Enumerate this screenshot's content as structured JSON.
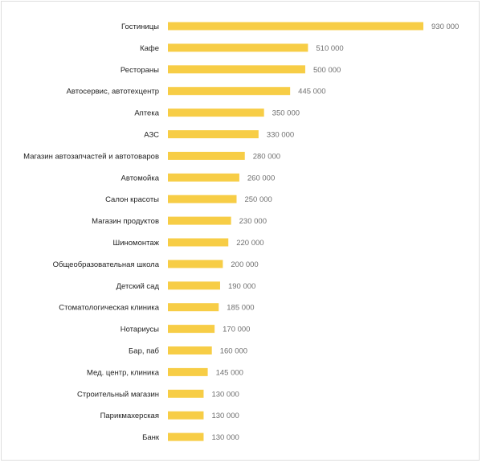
{
  "chart_data": {
    "type": "bar",
    "orientation": "horizontal",
    "title": "",
    "xlabel": "",
    "ylabel": "",
    "grid": false,
    "legend": "none",
    "bar_color": "#f7cd46",
    "label_color": "#1f1f1f",
    "value_label_color": "#6f6f6f",
    "xlim": [
      0,
      930000
    ],
    "categories": [
      "Гостиницы",
      "Кафе",
      "Рестораны",
      "Автосервис, автотехцентр",
      "Аптека",
      "АЗС",
      "Магазин автозапчастей и автотоваров",
      "Автомойка",
      "Салон красоты",
      "Магазин продуктов",
      "Шиномонтаж",
      "Общеобразовательная школа",
      "Детский сад",
      "Стоматологическая клиника",
      "Нотариусы",
      "Бар, паб",
      "Мед. центр, клиника",
      "Строительный магазин",
      "Парикмахерская",
      "Банк"
    ],
    "values": [
      930000,
      510000,
      500000,
      445000,
      350000,
      330000,
      280000,
      260000,
      250000,
      230000,
      220000,
      200000,
      190000,
      185000,
      170000,
      160000,
      145000,
      130000,
      130000,
      130000
    ],
    "value_labels": [
      "930 000",
      "510 000",
      "500 000",
      "445 000",
      "350 000",
      "330 000",
      "280 000",
      "260 000",
      "250 000",
      "230 000",
      "220 000",
      "200 000",
      "190 000",
      "185 000",
      "170 000",
      "160 000",
      "145 000",
      "130 000",
      "130 000",
      "130 000"
    ]
  }
}
